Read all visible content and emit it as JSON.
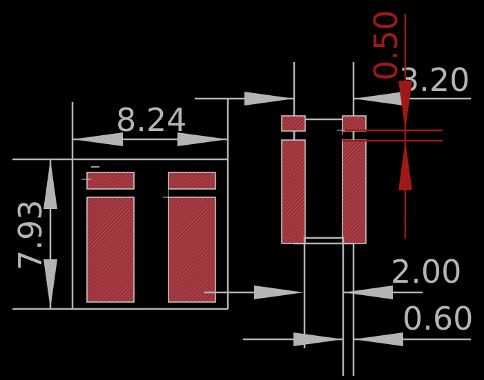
{
  "dimensions": {
    "width_overall": "8.24",
    "height_overall": "7.93",
    "span": "3.20",
    "gap": "0.50",
    "pad_width": "2.00",
    "pad_gap": "0.60"
  },
  "colors": {
    "background": "#000000",
    "dimension_line": "#b4b4b4",
    "highlight": "#a01818",
    "pad_fill": "#a0333c"
  }
}
